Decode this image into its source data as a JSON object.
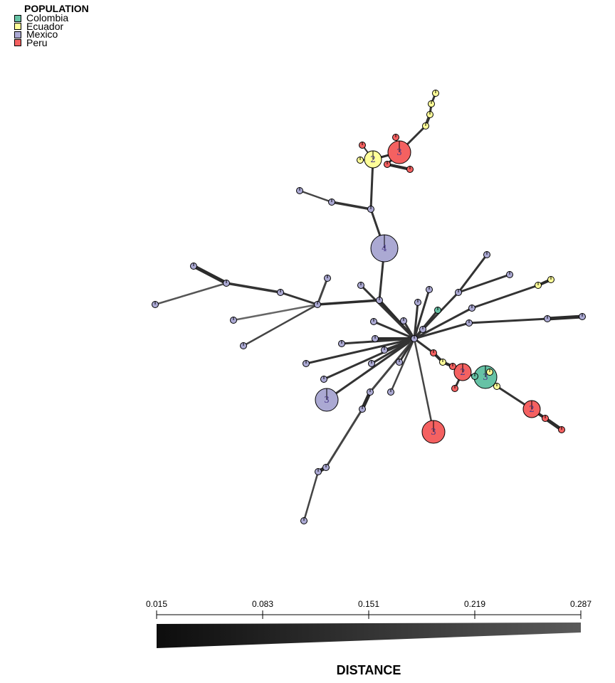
{
  "legend": {
    "title": "POPULATION",
    "items": [
      {
        "label": "Colombia",
        "color": "#66C2A5"
      },
      {
        "label": "Ecuador",
        "color": "#FFFF99"
      },
      {
        "label": "Mexico",
        "color": "#ABA9D3"
      },
      {
        "label": "Peru",
        "color": "#F46161"
      }
    ]
  },
  "scale": {
    "title": "DISTANCE",
    "ticks": [
      "0.015",
      "0.083",
      "0.151",
      "0.219",
      "0.287"
    ]
  },
  "network": {
    "nodes": [
      {
        "id": "hub",
        "pop": "Mexico",
        "count": 1
      },
      {
        "id": "m4",
        "pop": "Mexico",
        "count": 4
      },
      {
        "id": "m3",
        "pop": "Mexico",
        "count": 3
      },
      {
        "id": "p3top",
        "pop": "Peru",
        "count": 3
      },
      {
        "id": "e2top",
        "pop": "Ecuador",
        "count": 2
      },
      {
        "id": "p3bottom",
        "pop": "Peru",
        "count": 3
      },
      {
        "id": "p2a",
        "pop": "Peru",
        "count": 2
      },
      {
        "id": "c3",
        "pop": "Colombia",
        "count": 3
      },
      {
        "id": "p2b",
        "pop": "Peru",
        "count": 2
      }
    ]
  }
}
